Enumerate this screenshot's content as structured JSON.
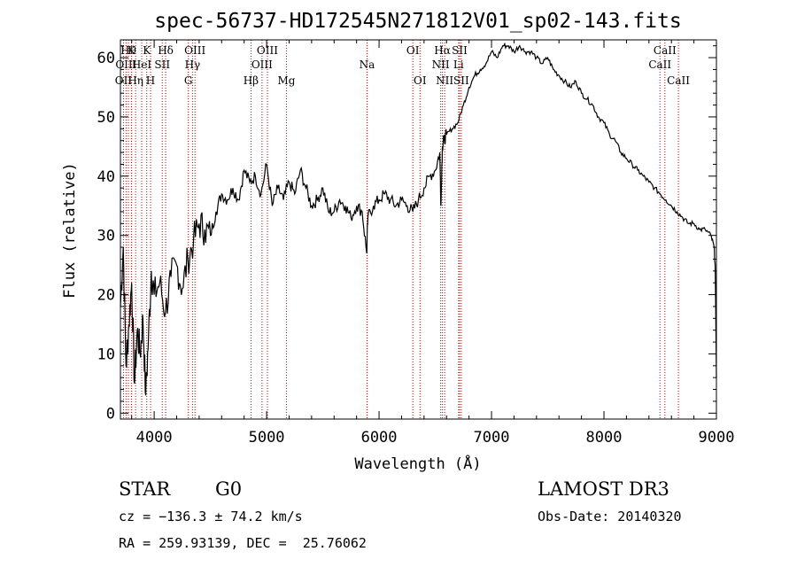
{
  "chart_data": {
    "type": "line",
    "title": "spec-56737-HD172545N271812V01_sp02-143.fits",
    "xlabel": "Wavelength (Å)",
    "ylabel": "Flux (relative)",
    "xlim": [
      3700,
      9000
    ],
    "ylim": [
      -1,
      63
    ],
    "xticks": [
      4000,
      5000,
      6000,
      7000,
      8000,
      9000
    ],
    "yticks": [
      0,
      10,
      20,
      30,
      40,
      50,
      60
    ],
    "grid": false,
    "line_color": "#000000",
    "spectral_line_color": "#cc0000",
    "series": [
      {
        "x": [
          3700,
          3725,
          3750,
          3775,
          3800,
          3825,
          3850,
          3875,
          3900,
          3925,
          3950,
          3975,
          4000,
          4050,
          4100,
          4150,
          4200,
          4250,
          4300,
          4350,
          4400,
          4450,
          4500,
          4550,
          4600,
          4650,
          4700,
          4750,
          4800,
          4850,
          4900,
          4950,
          5000,
          5050,
          5100,
          5150,
          5200,
          5250,
          5300,
          5350,
          5400,
          5450,
          5500,
          5550,
          5600,
          5650,
          5700,
          5750,
          5800,
          5850,
          5890,
          5900,
          5950,
          6000,
          6050,
          6100,
          6150,
          6200,
          6250,
          6300,
          6350,
          6400,
          6450,
          6500,
          6540,
          6550,
          6563,
          6575,
          6600,
          6650,
          6700,
          6750,
          6800,
          6850,
          6900,
          6950,
          7000,
          7050,
          7100,
          7150,
          7200,
          7250,
          7300,
          7350,
          7400,
          7450,
          7500,
          7550,
          7600,
          7650,
          7700,
          7750,
          7800,
          7850,
          7900,
          7950,
          8000,
          8050,
          8100,
          8150,
          8200,
          8250,
          8300,
          8350,
          8400,
          8450,
          8500,
          8550,
          8600,
          8650,
          8700,
          8750,
          8800,
          8850,
          8900,
          8950,
          8980,
          8990,
          9000
        ],
        "y": [
          18,
          28,
          8,
          15,
          22,
          5,
          14,
          10,
          16,
          3,
          13,
          24,
          20,
          22,
          17,
          23,
          25,
          21,
          26,
          29,
          32,
          31,
          30,
          34,
          37,
          36,
          38,
          36,
          41,
          39,
          40,
          37,
          42,
          35,
          38,
          36,
          39,
          37,
          41,
          38,
          35,
          36,
          38,
          34,
          34,
          36,
          35,
          33,
          35,
          34,
          27,
          33,
          35,
          36,
          37,
          36,
          35,
          36,
          35,
          34,
          36,
          38,
          40,
          41,
          44,
          35,
          45,
          46,
          47,
          48,
          49,
          52,
          55,
          57,
          58,
          59,
          61,
          60,
          62,
          62,
          61,
          62,
          61,
          61,
          60,
          59,
          60,
          58,
          57,
          56,
          55,
          56,
          54,
          53,
          52,
          50,
          49,
          47,
          46,
          44,
          43,
          42,
          41,
          40,
          39,
          38,
          37,
          36,
          35,
          34,
          33,
          32,
          32,
          31,
          31,
          30,
          28,
          24,
          6
        ]
      }
    ],
    "spectral_lines": [
      {
        "wavelength": 3727,
        "label": "OII",
        "row": 2
      },
      {
        "wavelength": 3750,
        "label": "OIII",
        "row": 1
      },
      {
        "wavelength": 3771,
        "label": "Hθ",
        "row": 0
      },
      {
        "wavelength": 3798,
        "label": "K",
        "row": 0
      },
      {
        "wavelength": 3835,
        "label": "Hη",
        "row": 2
      },
      {
        "wavelength": 3889,
        "label": "HeI",
        "row": 1
      },
      {
        "wavelength": 3934,
        "label": "K",
        "row": 0
      },
      {
        "wavelength": 3968,
        "label": "H",
        "row": 2
      },
      {
        "wavelength": 4072,
        "label": "SII",
        "row": 1
      },
      {
        "wavelength": 4102,
        "label": "Hδ",
        "row": 0
      },
      {
        "wavelength": 4304,
        "label": "G",
        "row": 2
      },
      {
        "wavelength": 4341,
        "label": "Hγ",
        "row": 1
      },
      {
        "wavelength": 4363,
        "label": "OIII",
        "row": 0
      },
      {
        "wavelength": 4861,
        "label": "Hβ",
        "row": 2
      },
      {
        "wavelength": 4959,
        "label": "OIII",
        "row": 1
      },
      {
        "wavelength": 5007,
        "label": "OIII",
        "row": 0
      },
      {
        "wavelength": 5176,
        "label": "Mg",
        "row": 2
      },
      {
        "wavelength": 5893,
        "label": "Na",
        "row": 1
      },
      {
        "wavelength": 6300,
        "label": "OI",
        "row": 0
      },
      {
        "wavelength": 6364,
        "label": "OI",
        "row": 2
      },
      {
        "wavelength": 6548,
        "label": "NII",
        "row": 1
      },
      {
        "wavelength": 6563,
        "label": "Hα",
        "row": 0
      },
      {
        "wavelength": 6583,
        "label": "NII",
        "row": 2
      },
      {
        "wavelength": 6707,
        "label": "Li",
        "row": 1
      },
      {
        "wavelength": 6716,
        "label": "SII",
        "row": 0
      },
      {
        "wavelength": 6731,
        "label": "SII",
        "row": 2
      },
      {
        "wavelength": 8498,
        "label": "CaII",
        "row": 1
      },
      {
        "wavelength": 8542,
        "label": "CaII",
        "row": 0
      },
      {
        "wavelength": 8662,
        "label": "CaII",
        "row": 2
      }
    ]
  },
  "info": {
    "class": "STAR",
    "subclass": "G0",
    "survey": "LAMOST DR3",
    "velocity": "cz = −136.3 ± 74.2 km/s",
    "obs_date": "Obs-Date: 20140320",
    "coords": "RA = 259.93139, DEC =  25.76062"
  }
}
